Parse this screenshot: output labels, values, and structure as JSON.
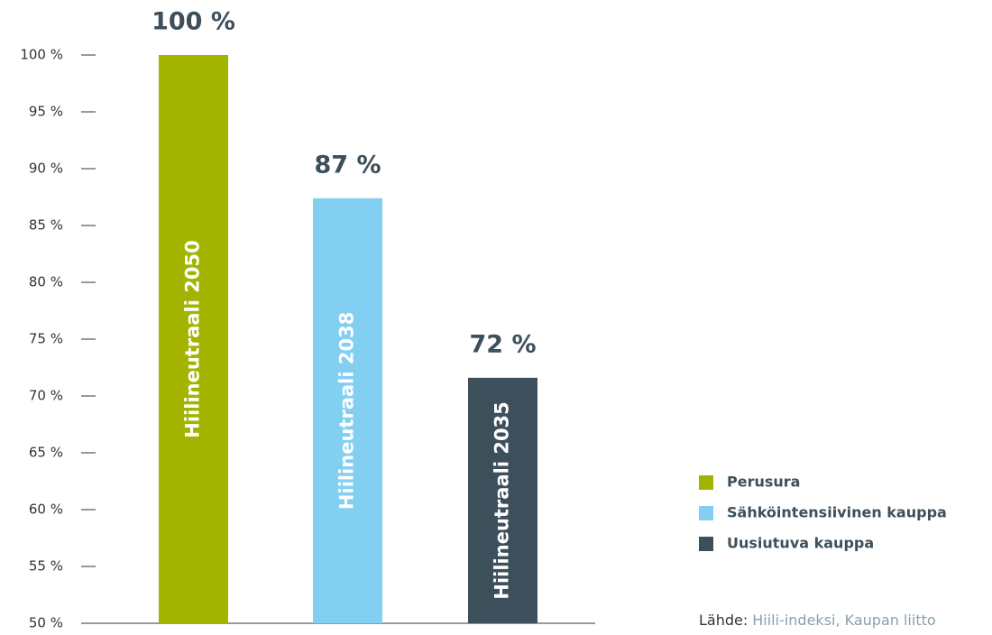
{
  "chart_data": {
    "type": "bar",
    "series": [
      {
        "name": "Perusura",
        "color": "#a3b400",
        "values": [
          100
        ],
        "value_labels": [
          "100 %"
        ],
        "annotation": "Hiilineutraali 2050"
      },
      {
        "name": "Sähköintensiivinen kauppa",
        "color": "#82cff2",
        "values": [
          87.4
        ],
        "value_labels": [
          "87 %"
        ],
        "annotation": "Hiilineutraali 2038"
      },
      {
        "name": "Uusiutuva kauppa",
        "color": "#3d4f5b",
        "values": [
          71.6
        ],
        "value_labels": [
          "72 %"
        ],
        "annotation": "Hiilineutraali 2035"
      }
    ],
    "ylim": [
      50,
      100
    ],
    "yticks": [
      {
        "value": 50,
        "label": "50 %"
      },
      {
        "value": 55,
        "label": "55 %"
      },
      {
        "value": 60,
        "label": "60 %"
      },
      {
        "value": 65,
        "label": "65 %"
      },
      {
        "value": 70,
        "label": "70 %"
      },
      {
        "value": 75,
        "label": "75 %"
      },
      {
        "value": 80,
        "label": "80 %"
      },
      {
        "value": 85,
        "label": "85 %"
      },
      {
        "value": 90,
        "label": "90 %"
      },
      {
        "value": 95,
        "label": "95 %"
      },
      {
        "value": 100,
        "label": "100 %"
      }
    ],
    "source": {
      "label": "Lähde:",
      "text": "Hiili-indeksi, Kaupan liitto"
    }
  }
}
